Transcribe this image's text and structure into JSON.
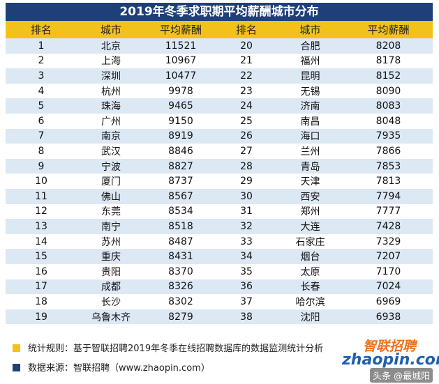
{
  "header": {
    "title": "2019年冬季求职期平均薪酬城市分布"
  },
  "table": {
    "columns": [
      "排名",
      "城市",
      "平均薪酬",
      "排名",
      "城市",
      "平均薪酬"
    ],
    "rows": [
      [
        1,
        "北京",
        11521,
        20,
        "合肥",
        8208
      ],
      [
        2,
        "上海",
        10967,
        21,
        "福州",
        8178
      ],
      [
        3,
        "深圳",
        10477,
        22,
        "昆明",
        8152
      ],
      [
        4,
        "杭州",
        9978,
        23,
        "无锡",
        8090
      ],
      [
        5,
        "珠海",
        9465,
        24,
        "济南",
        8083
      ],
      [
        6,
        "广州",
        9150,
        25,
        "南昌",
        8048
      ],
      [
        7,
        "南京",
        8919,
        26,
        "海口",
        7935
      ],
      [
        8,
        "武汉",
        8846,
        27,
        "兰州",
        7866
      ],
      [
        9,
        "宁波",
        8827,
        28,
        "青岛",
        7853
      ],
      [
        10,
        "厦门",
        8737,
        29,
        "天津",
        7813
      ],
      [
        11,
        "佛山",
        8567,
        30,
        "西安",
        7794
      ],
      [
        12,
        "东莞",
        8534,
        31,
        "郑州",
        7777
      ],
      [
        13,
        "南宁",
        8518,
        32,
        "大连",
        7428
      ],
      [
        14,
        "苏州",
        8487,
        33,
        "石家庄",
        7329
      ],
      [
        15,
        "重庆",
        8431,
        34,
        "烟台",
        7207
      ],
      [
        16,
        "贵阳",
        8370,
        35,
        "太原",
        7170
      ],
      [
        17,
        "成都",
        8326,
        36,
        "长春",
        7024
      ],
      [
        18,
        "长沙",
        8302,
        37,
        "哈尔滨",
        6969
      ],
      [
        19,
        "乌鲁木齐",
        8279,
        38,
        "沈阳",
        6938
      ]
    ]
  },
  "footer": {
    "notes": [
      "统计规则：基于智联招聘2019年冬季在线招聘数据库的数据监测统计分析",
      "数据来源：智联招聘（www.zhaopin.com）"
    ],
    "logo": {
      "name": "智联招聘",
      "domain": "zhaopin.com"
    },
    "watermark": "头条 @最城阳"
  }
}
